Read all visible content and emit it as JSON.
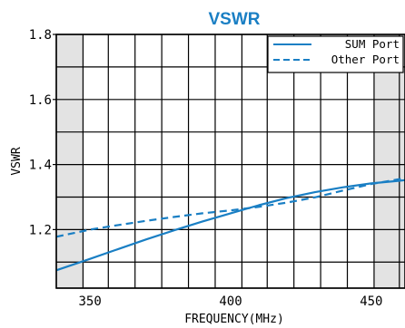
{
  "chart_data": {
    "type": "line",
    "title": "VSWR",
    "xlabel": "FREQUENCY(MHz)",
    "ylabel": "VSWR",
    "xlim": [
      338,
      462
    ],
    "ylim": [
      1.02,
      1.8
    ],
    "x_ticks": [
      350,
      400,
      450
    ],
    "y_ticks": [
      1.2,
      1.4,
      1.6,
      1.8
    ],
    "x_tick_labels": [
      "350",
      "400",
      "450"
    ],
    "y_tick_labels": [
      "1.2",
      "1.4",
      "1.6",
      "1.8"
    ],
    "x_grid": [
      338,
      347.5,
      356.5,
      366,
      375.5,
      385,
      394.5,
      404,
      413,
      422.5,
      432,
      441.5,
      451,
      460
    ],
    "y_grid": [
      1.02,
      1.1,
      1.2,
      1.3,
      1.4,
      1.5,
      1.6,
      1.7,
      1.8
    ],
    "shaded_ranges": [
      [
        338,
        347.5
      ],
      [
        451,
        462
      ]
    ],
    "grid": true,
    "legend_position": "top-right",
    "colors": {
      "line": "#1a7fc4",
      "shade": "#e3e3e3",
      "title": "#1a7fc4"
    },
    "series": [
      {
        "name": "SUM Port",
        "style": "solid",
        "x": [
          338,
          350,
          360,
          370,
          380,
          390,
          400,
          410,
          420,
          430,
          440,
          450,
          460,
          462
        ],
        "y": [
          1.075,
          1.11,
          1.14,
          1.17,
          1.198,
          1.225,
          1.25,
          1.275,
          1.297,
          1.315,
          1.33,
          1.342,
          1.35,
          1.352
        ]
      },
      {
        "name": "Other Port",
        "style": "dashed",
        "x": [
          338,
          350,
          360,
          370,
          380,
          390,
          400,
          410,
          420,
          430,
          440,
          450,
          460,
          462
        ],
        "y": [
          1.178,
          1.2,
          1.214,
          1.227,
          1.239,
          1.25,
          1.259,
          1.27,
          1.283,
          1.299,
          1.32,
          1.34,
          1.355,
          1.36
        ]
      }
    ]
  }
}
